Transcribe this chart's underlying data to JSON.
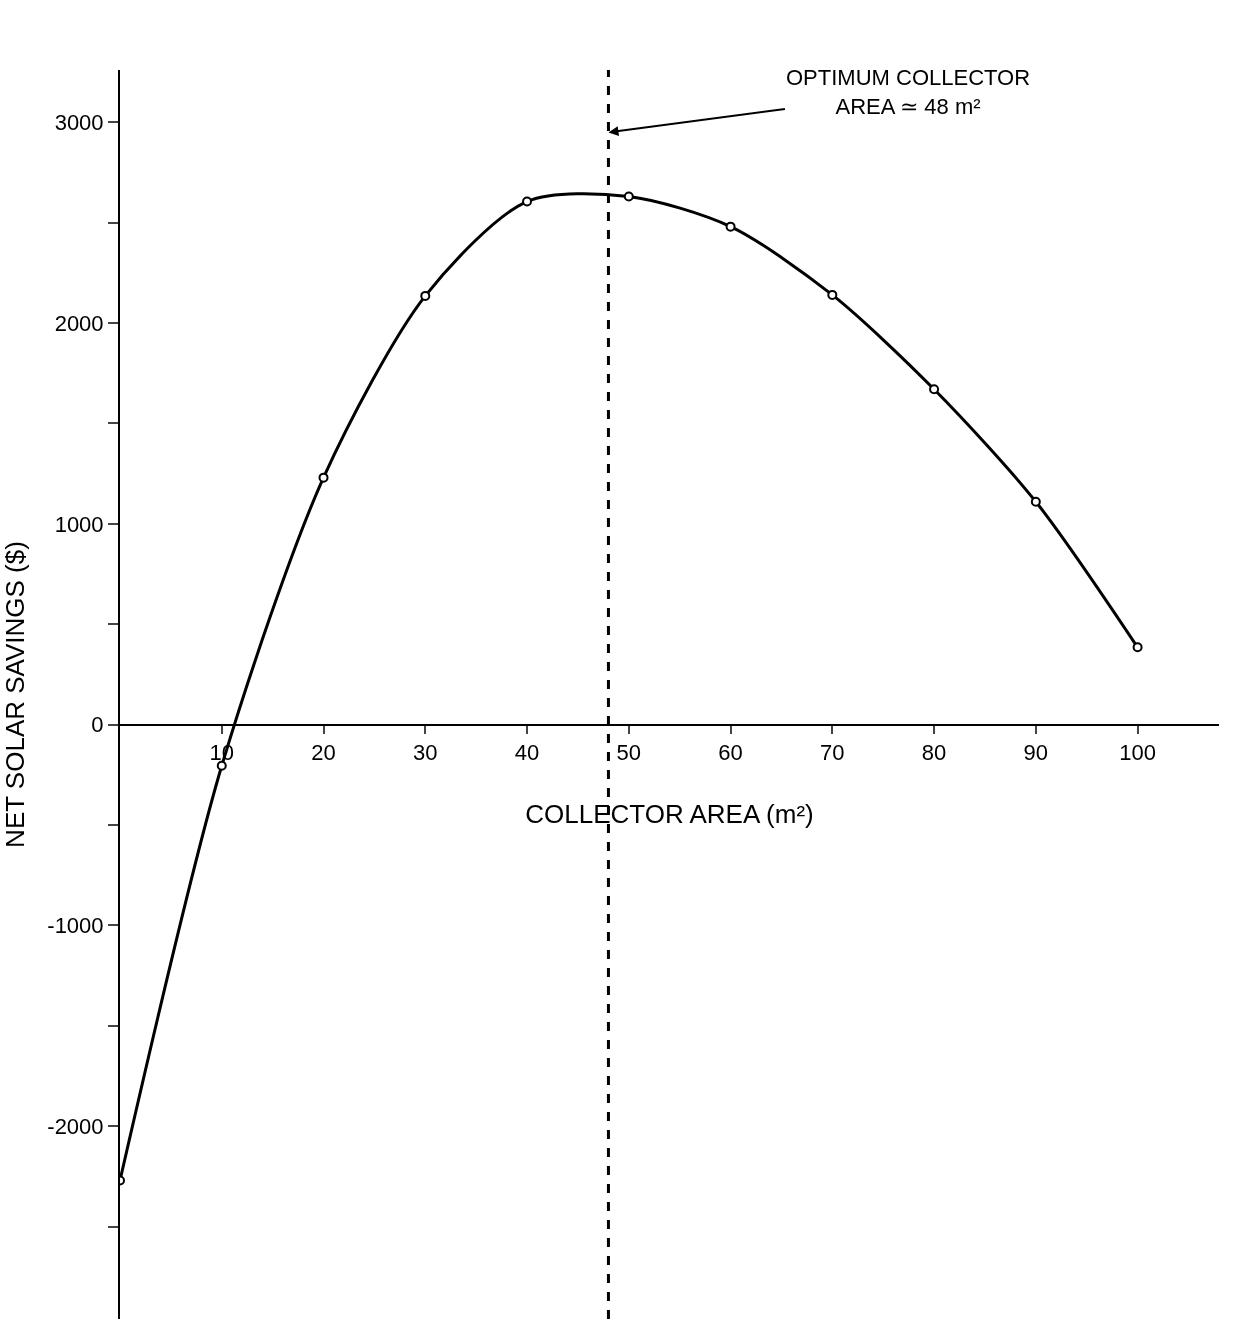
{
  "chart_data": {
    "type": "line",
    "xlabel": "COLLECTOR AREA (m²)",
    "ylabel": "NET SOLAR SAVINGS ($)",
    "x": [
      0,
      10,
      20,
      30,
      40,
      50,
      60,
      70,
      80,
      90,
      100
    ],
    "series": [
      {
        "color": "#000000",
        "values": [
          -2270,
          -205,
          1230,
          2135,
          2605,
          2630,
          2480,
          2140,
          1670,
          1110,
          385
        ]
      }
    ],
    "xlim": [
      0,
      108
    ],
    "xticks": [
      10,
      20,
      30,
      40,
      50,
      60,
      70,
      80,
      90,
      100
    ],
    "ylim": [
      -2960,
      3260
    ],
    "yticks": [
      {
        "value": -2500,
        "label": null
      },
      -2000,
      {
        "value": -1500,
        "label": null
      },
      -1000,
      {
        "value": -500,
        "label": null
      },
      0,
      {
        "value": 500,
        "label": null
      },
      1000,
      {
        "value": 1500,
        "label": null
      },
      2000,
      {
        "value": 2500,
        "label": null
      },
      3000
    ],
    "ref_lines": [
      {
        "axis": "x",
        "value": 48,
        "label": "OPTIMUM COLLECTOR\nAREA ≃ 48 m²",
        "color": "#000000",
        "line_style": "dashed"
      }
    ],
    "marker": "circle",
    "legend": false
  }
}
